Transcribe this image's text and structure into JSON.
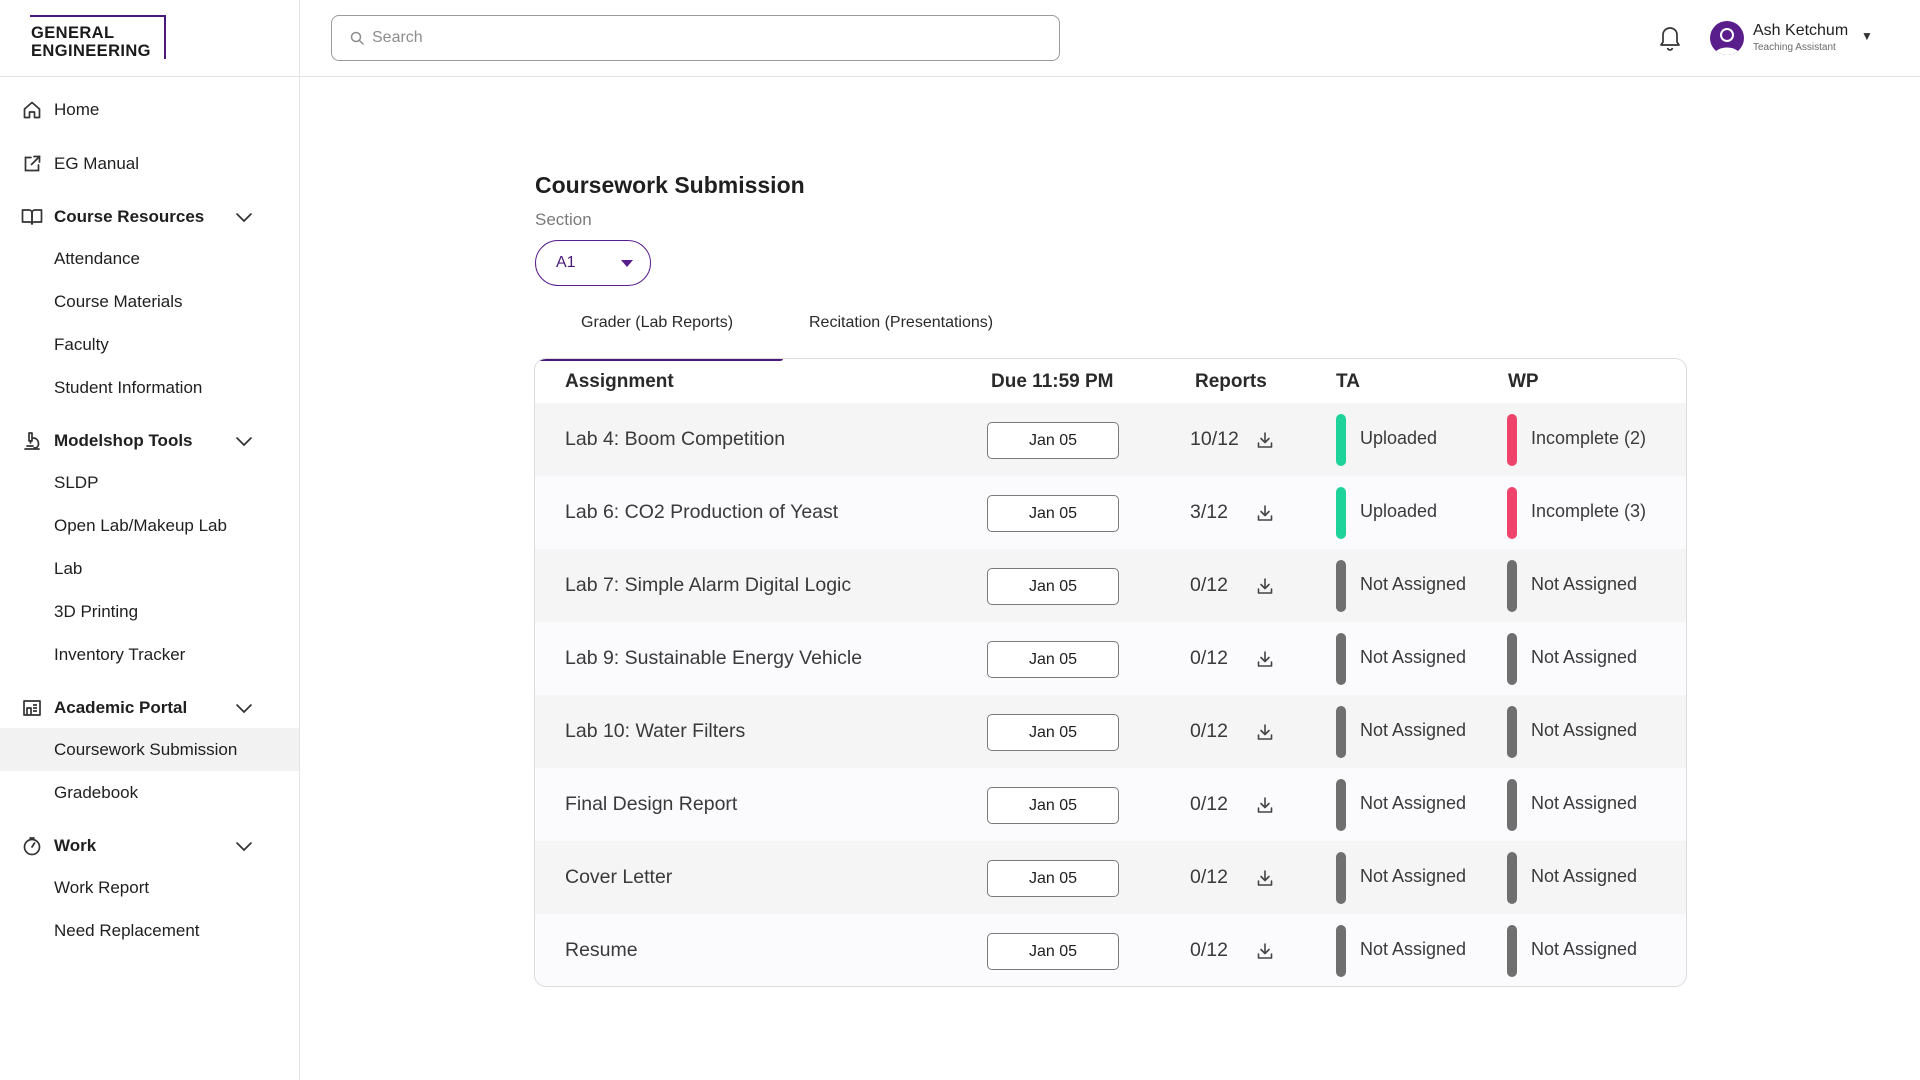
{
  "logo": {
    "line1": "GENERAL",
    "line2": "ENGINEERING"
  },
  "sidebar": {
    "top_items": [
      {
        "label": "Home",
        "icon": "home-icon"
      },
      {
        "label": "EG Manual",
        "icon": "external-link-icon"
      }
    ],
    "groups": [
      {
        "label": "Course Resources",
        "icon": "book-icon",
        "items": [
          "Attendance",
          "Course Materials",
          "Faculty",
          "Student Information"
        ]
      },
      {
        "label": "Modelshop Tools",
        "icon": "microscope-icon",
        "items": [
          "SLDP",
          "Open Lab/Makeup Lab",
          "Lab",
          "3D Printing",
          "Inventory Tracker"
        ]
      },
      {
        "label": "Academic Portal",
        "icon": "portal-icon",
        "items": [
          "Coursework Submission",
          "Gradebook"
        ]
      },
      {
        "label": "Work",
        "icon": "stopwatch-icon",
        "items": [
          "Work Report",
          "Need Replacement"
        ]
      }
    ],
    "active_item": "Coursework Submission"
  },
  "header": {
    "search_placeholder": "Search",
    "user_name": "Ash Ketchum",
    "user_role": "Teaching Assistant"
  },
  "main": {
    "title": "Coursework Submission",
    "section_label": "Section",
    "section_value": "A1",
    "tabs": [
      {
        "label": "Grader (Lab Reports)",
        "active": true
      },
      {
        "label": "Recitation (Presentations)",
        "active": false
      }
    ],
    "table": {
      "headers": [
        "Assignment",
        "Due 11:59 PM",
        "Reports",
        "TA",
        "WP"
      ],
      "rows": [
        {
          "assignment": "Lab 4: Boom Competition",
          "due": "Jan 05",
          "reports": "10/12",
          "ta": "Uploaded",
          "ta_color": "#1ed39a",
          "wp": "Incomplete (2)",
          "wp_color": "#f0436b"
        },
        {
          "assignment": "Lab 6: CO2 Production of Yeast",
          "due": "Jan 05",
          "reports": "3/12",
          "ta": "Uploaded",
          "ta_color": "#1ed39a",
          "wp": "Incomplete (3)",
          "wp_color": "#f0436b"
        },
        {
          "assignment": "Lab 7: Simple Alarm Digital Logic",
          "due": "Jan 05",
          "reports": "0/12",
          "ta": "Not Assigned",
          "ta_color": "#6f6f6f",
          "wp": "Not Assigned",
          "wp_color": "#6f6f6f"
        },
        {
          "assignment": "Lab 9: Sustainable Energy Vehicle",
          "due": "Jan 05",
          "reports": "0/12",
          "ta": "Not Assigned",
          "ta_color": "#6f6f6f",
          "wp": "Not Assigned",
          "wp_color": "#6f6f6f"
        },
        {
          "assignment": "Lab 10: Water Filters",
          "due": "Jan 05",
          "reports": "0/12",
          "ta": "Not Assigned",
          "ta_color": "#6f6f6f",
          "wp": "Not Assigned",
          "wp_color": "#6f6f6f"
        },
        {
          "assignment": "Final Design Report",
          "due": "Jan 05",
          "reports": "0/12",
          "ta": "Not Assigned",
          "ta_color": "#6f6f6f",
          "wp": "Not Assigned",
          "wp_color": "#6f6f6f"
        },
        {
          "assignment": "Cover Letter",
          "due": "Jan 05",
          "reports": "0/12",
          "ta": "Not Assigned",
          "ta_color": "#6f6f6f",
          "wp": "Not Assigned",
          "wp_color": "#6f6f6f"
        },
        {
          "assignment": "Resume",
          "due": "Jan 05",
          "reports": "0/12",
          "ta": "Not Assigned",
          "ta_color": "#6f6f6f",
          "wp": "Not Assigned",
          "wp_color": "#6f6f6f"
        }
      ]
    }
  },
  "colors": {
    "accent": "#4a1a7a",
    "uploaded": "#1ed39a",
    "incomplete": "#f0436b",
    "not_assigned": "#6f6f6f"
  }
}
